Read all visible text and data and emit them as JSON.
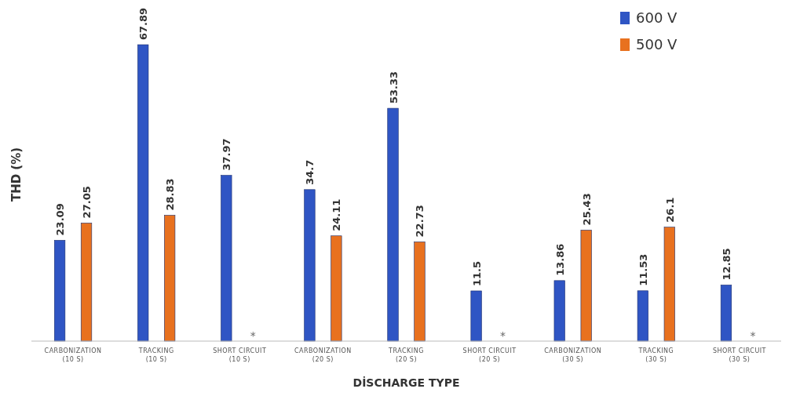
{
  "chart_data": {
    "type": "bar",
    "xlabel": "DİSCHARGE TYPE",
    "ylabel": "THD (%)",
    "categories": [
      "CARBONIZATION (10 S)",
      "TRACKING (10 S)",
      "SHORT CIRCUIT (10 S)",
      "CARBONIZATION (20 S)",
      "TRACKING (20 S)",
      "SHORT CIRCUIT (20 S)",
      "CARBONIZATION (30 S)",
      "TRACKING (30 S)",
      "SHORT CIRCUIT (30 S)"
    ],
    "series": [
      {
        "name": "600 V",
        "color": "#2f55c4",
        "values": [
          23.09,
          67.89,
          37.97,
          34.7,
          53.33,
          11.5,
          13.86,
          11.53,
          12.85
        ]
      },
      {
        "name": "500 V",
        "color": "#e8711f",
        "values": [
          27.05,
          28.83,
          null,
          24.11,
          22.73,
          null,
          25.43,
          26.1,
          null
        ]
      }
    ],
    "annotations": [
      "*",
      "*",
      "*"
    ],
    "data_labels": true,
    "legend": "top right"
  }
}
